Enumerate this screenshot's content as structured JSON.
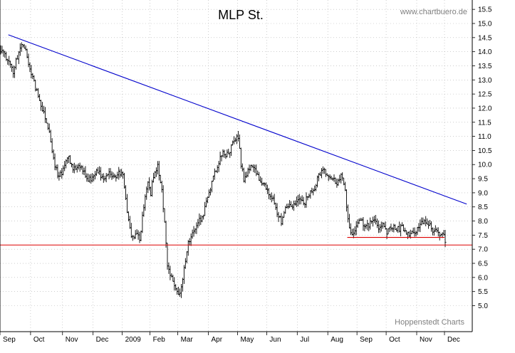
{
  "chart_data": {
    "type": "ohlc",
    "title": "MLP St.",
    "watermark_top": "www.chartbuero.de",
    "watermark_bottom": "Hoppenstedt Charts",
    "xlabel": "",
    "ylabel": "",
    "ylim": [
      4.8,
      15.6
    ],
    "y_ticks": [
      "15.5",
      "15.0",
      "14.5",
      "14.0",
      "13.5",
      "13.0",
      "12.5",
      "12.0",
      "11.5",
      "11.0",
      "10.5",
      "10.0",
      "9.5",
      "9.0",
      "8.5",
      "8.0",
      "7.5",
      "7.0",
      "6.5",
      "6.0",
      "5.5",
      "5.0"
    ],
    "x_ticks": [
      "Sep",
      "Oct",
      "Nov",
      "Dec",
      "2009",
      "Feb",
      "Mar",
      "Apr",
      "May",
      "Jun",
      "Jul",
      "Aug",
      "Sep",
      "Oct",
      "Nov",
      "Dec"
    ],
    "x_tick_index": [
      0,
      22,
      45,
      67,
      88,
      108,
      128,
      150,
      171,
      192,
      214,
      236,
      257,
      278,
      300,
      320
    ],
    "grid": "dotted",
    "series_color": "#000000",
    "trendline_color": "#0000cc",
    "support_color": "#dd0000",
    "trendline": {
      "start": [
        6,
        14.6
      ],
      "end": [
        336,
        8.6
      ]
    },
    "support_lines": [
      {
        "y": 7.15,
        "from": 0,
        "to": 340
      },
      {
        "y": 7.42,
        "from": 250,
        "to": 320
      }
    ],
    "anchors": [
      [
        0,
        14.05
      ],
      [
        5,
        13.7
      ],
      [
        9,
        13.3
      ],
      [
        12,
        13.8
      ],
      [
        15,
        14.3
      ],
      [
        18,
        14.05
      ],
      [
        22,
        13.2
      ],
      [
        26,
        12.6
      ],
      [
        30,
        12.0
      ],
      [
        35,
        11.2
      ],
      [
        38,
        10.2
      ],
      [
        41,
        9.6
      ],
      [
        45,
        9.8
      ],
      [
        48,
        10.3
      ],
      [
        52,
        9.9
      ],
      [
        57,
        10.0
      ],
      [
        60,
        9.7
      ],
      [
        63,
        9.4
      ],
      [
        67,
        9.6
      ],
      [
        70,
        9.75
      ],
      [
        74,
        9.5
      ],
      [
        78,
        9.7
      ],
      [
        82,
        9.55
      ],
      [
        85,
        9.8
      ],
      [
        88,
        9.6
      ],
      [
        90,
        8.8
      ],
      [
        92,
        8.0
      ],
      [
        94,
        7.4
      ],
      [
        96,
        7.35
      ],
      [
        98,
        7.6
      ],
      [
        100,
        7.3
      ],
      [
        103,
        8.5
      ],
      [
        106,
        9.4
      ],
      [
        108,
        9.0
      ],
      [
        110,
        9.6
      ],
      [
        113,
        10.0
      ],
      [
        116,
        9.1
      ],
      [
        118,
        7.9
      ],
      [
        120,
        6.5
      ],
      [
        122,
        6.0
      ],
      [
        124,
        5.9
      ],
      [
        126,
        5.5
      ],
      [
        128,
        5.3
      ],
      [
        130,
        5.6
      ],
      [
        132,
        6.3
      ],
      [
        134,
        7.0
      ],
      [
        137,
        7.5
      ],
      [
        140,
        7.8
      ],
      [
        143,
        8.0
      ],
      [
        146,
        8.3
      ],
      [
        150,
        9.0
      ],
      [
        153,
        9.5
      ],
      [
        156,
        10.0
      ],
      [
        159,
        10.4
      ],
      [
        162,
        10.3
      ],
      [
        165,
        10.5
      ],
      [
        168,
        10.8
      ],
      [
        171,
        11.0
      ],
      [
        173,
        10.0
      ],
      [
        175,
        9.5
      ],
      [
        178,
        9.8
      ],
      [
        181,
        9.9
      ],
      [
        184,
        9.7
      ],
      [
        188,
        9.4
      ],
      [
        192,
        9.0
      ],
      [
        196,
        8.8
      ],
      [
        199,
        8.2
      ],
      [
        202,
        8.0
      ],
      [
        205,
        8.4
      ],
      [
        208,
        8.6
      ],
      [
        211,
        8.5
      ],
      [
        214,
        8.7
      ],
      [
        218,
        8.6
      ],
      [
        222,
        8.9
      ],
      [
        226,
        9.2
      ],
      [
        229,
        9.6
      ],
      [
        232,
        9.9
      ],
      [
        236,
        9.5
      ],
      [
        239,
        9.6
      ],
      [
        242,
        9.3
      ],
      [
        245,
        9.7
      ],
      [
        248,
        9.0
      ],
      [
        250,
        8.0
      ],
      [
        252,
        7.5
      ],
      [
        254,
        7.6
      ],
      [
        257,
        7.9
      ],
      [
        260,
        8.0
      ],
      [
        263,
        7.8
      ],
      [
        266,
        7.9
      ],
      [
        269,
        8.0
      ],
      [
        272,
        7.8
      ],
      [
        275,
        7.9
      ],
      [
        278,
        7.6
      ],
      [
        280,
        7.75
      ],
      [
        283,
        7.8
      ],
      [
        286,
        7.7
      ],
      [
        289,
        7.8
      ],
      [
        292,
        7.6
      ],
      [
        294,
        7.5
      ],
      [
        297,
        7.55
      ],
      [
        300,
        7.7
      ],
      [
        303,
        7.9
      ],
      [
        306,
        8.0
      ],
      [
        309,
        7.8
      ],
      [
        312,
        7.65
      ],
      [
        315,
        7.5
      ],
      [
        317,
        7.55
      ],
      [
        319,
        7.5
      ],
      [
        320,
        7.25
      ]
    ]
  }
}
